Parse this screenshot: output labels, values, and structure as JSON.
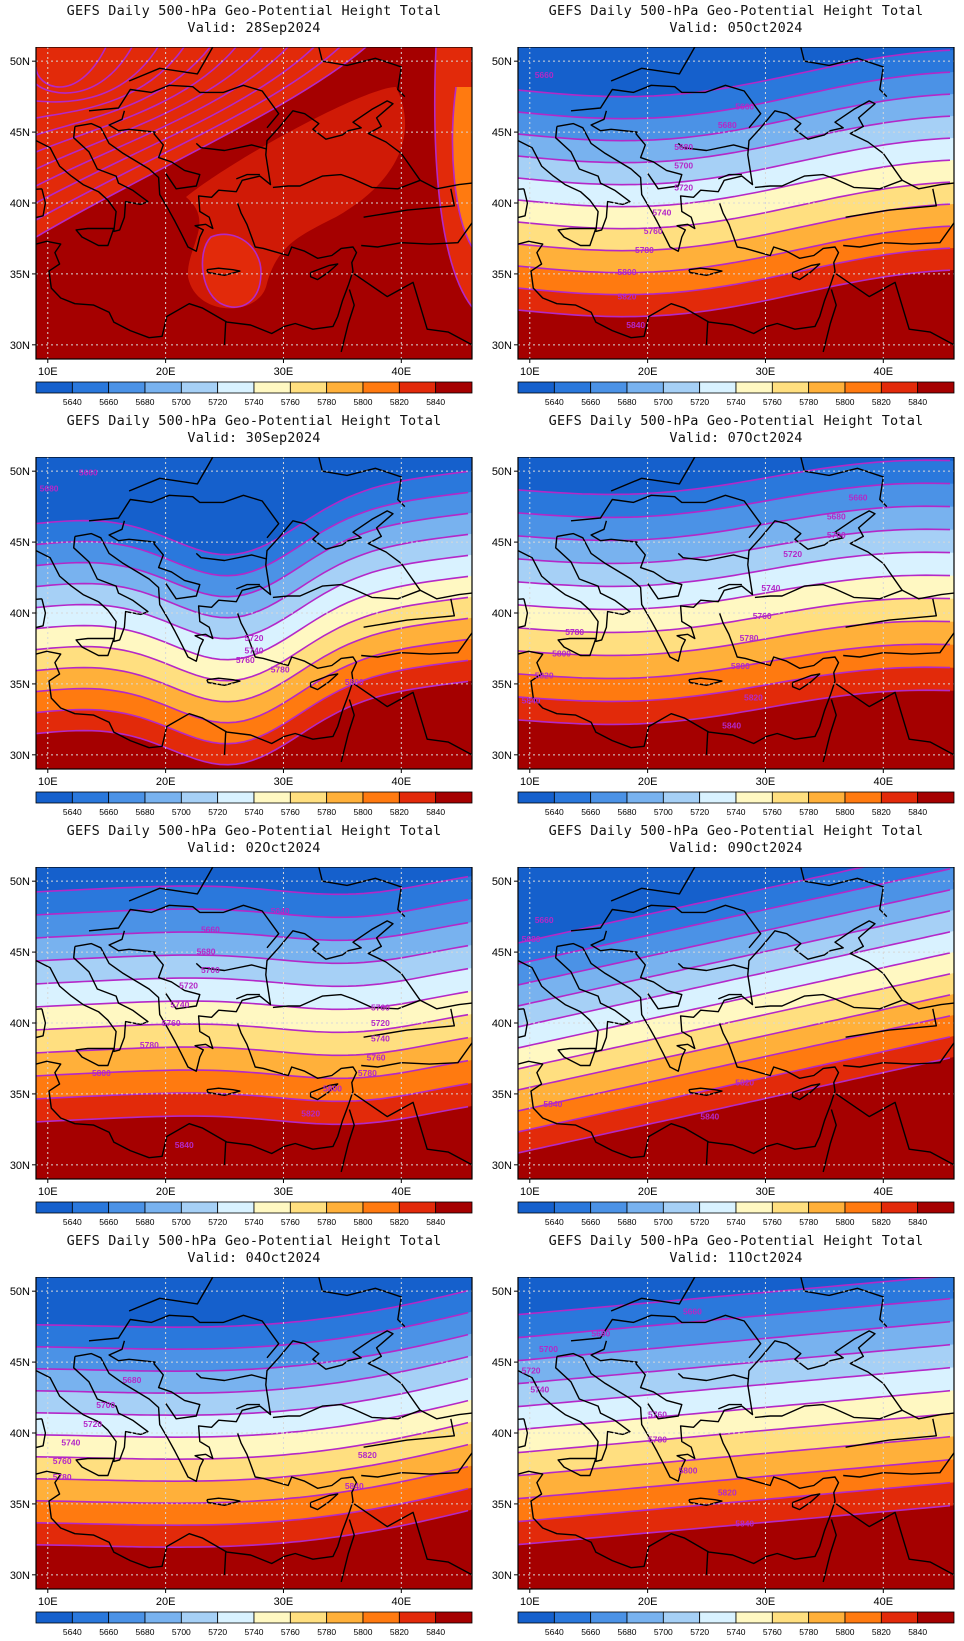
{
  "panel_title": "GEFS Daily 500-hPa Geo-Potential Height Total",
  "valid_prefix": "Valid: ",
  "axis": {
    "lon_labels": [
      "10E",
      "20E",
      "30E",
      "40E"
    ],
    "lat_labels": [
      "50N",
      "45N",
      "40N",
      "35N",
      "30N"
    ],
    "lon_range": [
      9,
      46
    ],
    "lat_range": [
      29,
      51
    ]
  },
  "colorbar": {
    "labels": [
      "5640",
      "5660",
      "5680",
      "5700",
      "5720",
      "5740",
      "5760",
      "5780",
      "5800",
      "5820",
      "5840"
    ],
    "colors": [
      "#1560cc",
      "#2a78dc",
      "#4b92e6",
      "#78b2ef",
      "#a6d0f6",
      "#d9f2ff",
      "#fff8c2",
      "#ffdf80",
      "#ffb03a",
      "#ff7a10",
      "#e22a0a",
      "#a50000"
    ]
  },
  "contour_color": "#b428c8",
  "panels": [
    {
      "valid": "28Sep2024",
      "position": "left-1",
      "contour_labels": []
    },
    {
      "valid": "05Oct2024",
      "position": "right-1",
      "contour_labels": [
        "5660",
        "5660",
        "5680",
        "5680",
        "5700",
        "5720",
        "5740",
        "5760",
        "5780",
        "5800",
        "5820",
        "5840"
      ]
    },
    {
      "valid": "30Sep2024",
      "position": "left-2",
      "contour_labels": [
        "5660",
        "5680",
        "5720",
        "5740",
        "5760",
        "5780",
        "5800"
      ]
    },
    {
      "valid": "07Oct2024",
      "position": "right-2",
      "contour_labels": [
        "5660",
        "5680",
        "5700",
        "5720",
        "5740",
        "5760",
        "5780",
        "5780",
        "5800",
        "5800",
        "5820",
        "5820",
        "5840",
        "5840"
      ]
    },
    {
      "valid": "02Oct2024",
      "position": "left-3",
      "contour_labels": [
        "5640",
        "5660",
        "5680",
        "5700",
        "5720",
        "5740",
        "5760",
        "5780",
        "5800",
        "5760",
        "5720",
        "5740",
        "5760",
        "5780",
        "5800",
        "5820",
        "5840"
      ]
    },
    {
      "valid": "09Oct2024",
      "position": "right-3",
      "contour_labels": [
        "5660",
        "5680",
        "5820",
        "5840",
        "5840"
      ]
    },
    {
      "valid": "04Oct2024",
      "position": "left-4",
      "contour_labels": [
        "5680",
        "5700",
        "5720",
        "5740",
        "5760",
        "5780",
        "5820",
        "5840"
      ]
    },
    {
      "valid": "11Oct2024",
      "position": "right-4",
      "contour_labels": [
        "5660",
        "5680",
        "5700",
        "5720",
        "5740",
        "5760",
        "5780",
        "5800",
        "5820",
        "5840"
      ]
    }
  ]
}
